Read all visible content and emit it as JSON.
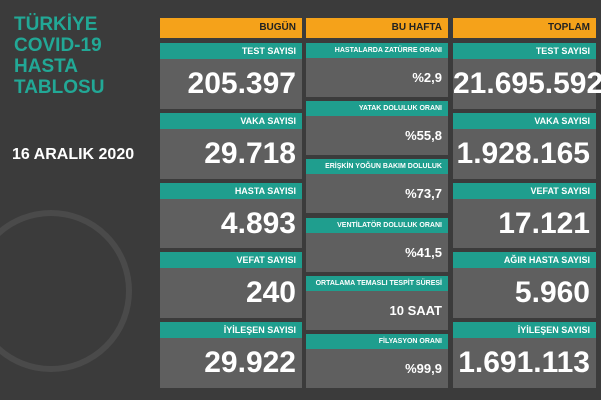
{
  "header": {
    "title_lines": [
      "TÜRKİYE",
      "COVID-19",
      "HASTA",
      "TABLOSU"
    ],
    "date": "16 ARALIK 2020"
  },
  "columns": [
    {
      "heading": "BUGÜN",
      "items": [
        {
          "label": "TEST SAYISI",
          "value": "205.397"
        },
        {
          "label": "VAKA SAYISI",
          "value": "29.718"
        },
        {
          "label": "HASTA SAYISI",
          "value": "4.893"
        },
        {
          "label": "VEFAT SAYISI",
          "value": "240"
        },
        {
          "label": "İYİLEŞEN SAYISI",
          "value": "29.922"
        }
      ]
    },
    {
      "heading": "BU HAFTA",
      "items": [
        {
          "label": "HASTALARDA ZATÜRRE ORANI",
          "value": "%2,9"
        },
        {
          "label": "YATAK DOLULUK ORANI",
          "value": "%55,8"
        },
        {
          "label": "ERİŞKİN YOĞUN BAKIM DOLULUK ORANI",
          "value": "%73,7"
        },
        {
          "label": "VENTİLATÖR DOLULUK ORANI",
          "value": "%41,5"
        },
        {
          "label": "ORTALAMA TEMASLI TESPİT SÜRESİ",
          "value": "10 SAAT"
        },
        {
          "label": "FİLYASYON ORANI",
          "value": "%99,9"
        }
      ]
    },
    {
      "heading": "TOPLAM",
      "items": [
        {
          "label": "TEST SAYISI",
          "value": "21.695.592"
        },
        {
          "label": "VAKA SAYISI",
          "value": "1.928.165"
        },
        {
          "label": "VEFAT SAYISI",
          "value": "17.121"
        },
        {
          "label": "AĞIR HASTA SAYISI",
          "value": "5.960"
        },
        {
          "label": "İYİLEŞEN SAYISI",
          "value": "1.691.113"
        }
      ]
    }
  ]
}
